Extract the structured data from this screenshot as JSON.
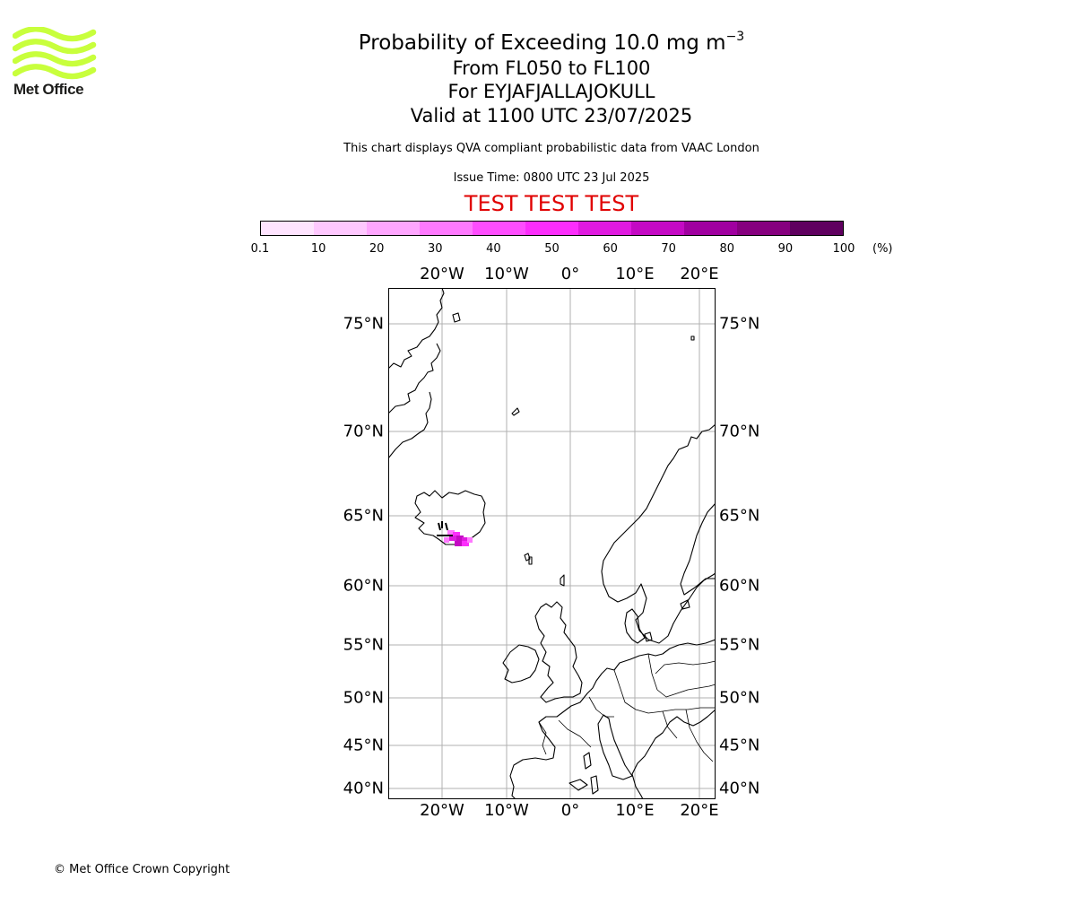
{
  "logo": {
    "text": "Met Office",
    "brand_color": "#c8ff3c"
  },
  "title": {
    "main": "Probability of Exceeding 10.0 mg m",
    "main_superscript": "−3",
    "levels": "From FL050 to FL100",
    "volcano": "For EYJAFJALLAJOKULL",
    "valid": "Valid at 1100 UTC 23/07/2025"
  },
  "subtitle": "This chart displays QVA compliant probabilistic data from VAAC London",
  "issue_time": "Issue Time: 0800 UTC 23 Jul 2025",
  "test_banner": {
    "text": "TEST TEST TEST",
    "color": "#e00000"
  },
  "colorbar": {
    "ticks": [
      "0.1",
      "10",
      "20",
      "30",
      "40",
      "50",
      "60",
      "70",
      "80",
      "90",
      "100"
    ],
    "unit": "(%)",
    "colors": [
      "#ffe4ff",
      "#ffc8ff",
      "#ffa6ff",
      "#ff79ff",
      "#ff4dff",
      "#fc2dfc",
      "#e01ae0",
      "#c40ac4",
      "#a000a0",
      "#86007f",
      "#5f005f"
    ]
  },
  "map": {
    "lon_labels": [
      "20°W",
      "10°W",
      "0°",
      "10°E",
      "20°E"
    ],
    "lat_labels": [
      "75°N",
      "70°N",
      "65°N",
      "60°N",
      "55°N",
      "50°N",
      "45°N",
      "40°N"
    ],
    "volcano_marker": "triangle-icon",
    "ash_cloud_colors": [
      "#ff79ff",
      "#fc2dfc",
      "#e01ae0",
      "#c40ac4"
    ]
  },
  "copyright": "© Met Office Crown Copyright"
}
